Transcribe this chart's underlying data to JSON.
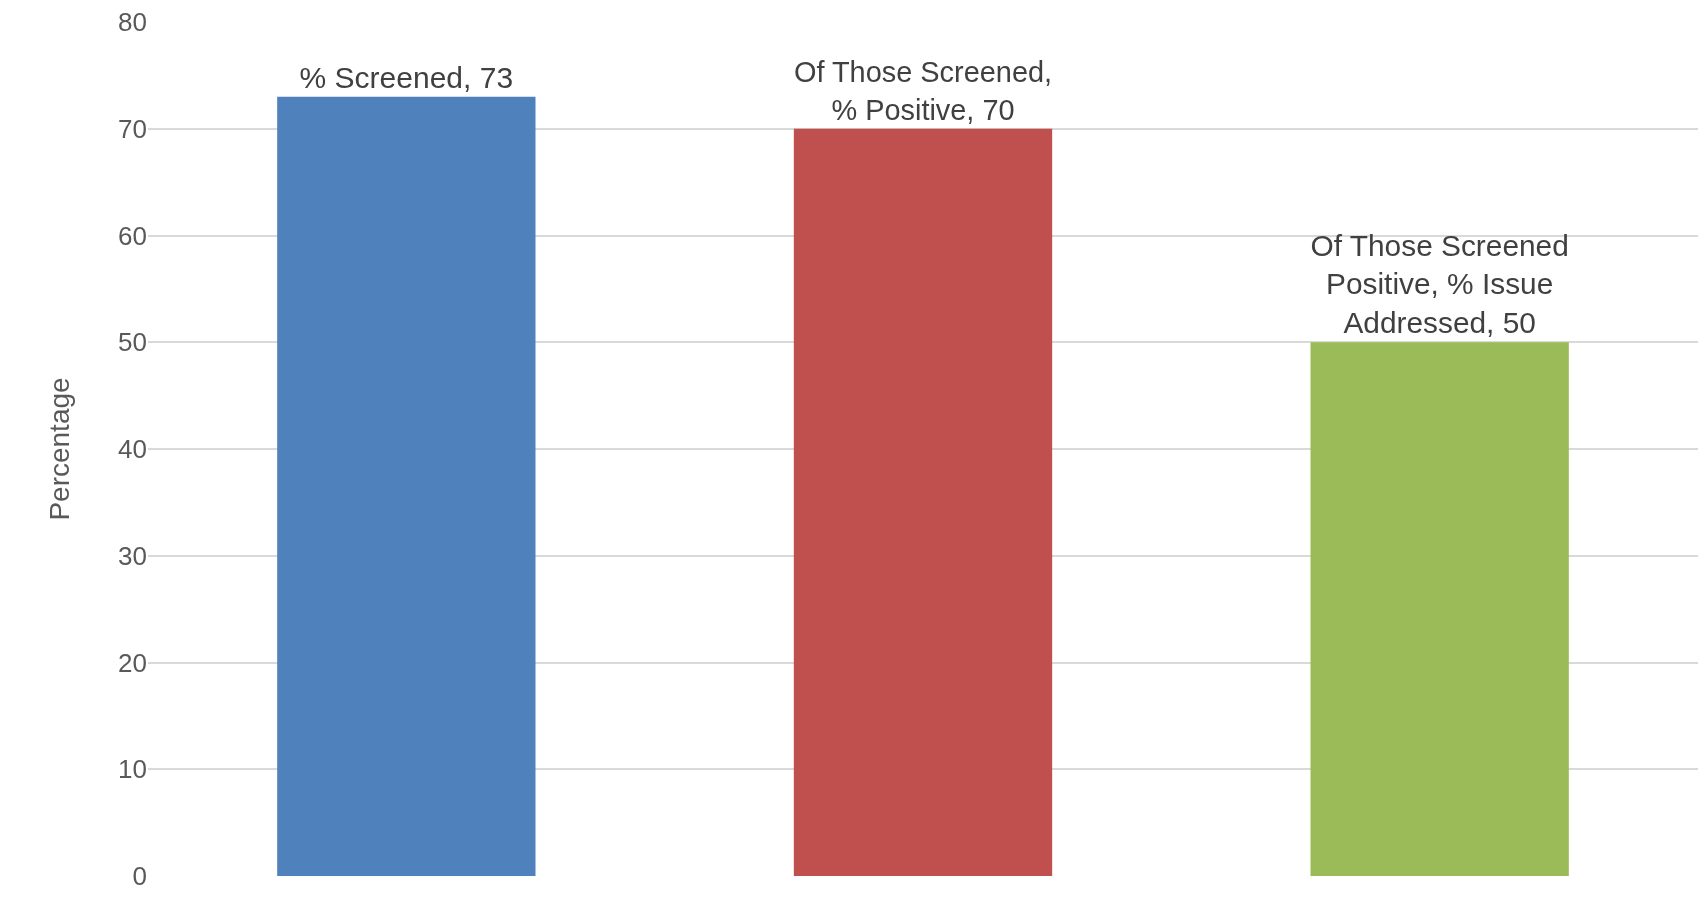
{
  "chart_data": {
    "type": "bar",
    "ylabel": "Percentage",
    "categories": [
      null,
      null,
      null
    ],
    "values": [
      73,
      70,
      50
    ],
    "colors": [
      "#4f81bd",
      "#c0504d",
      "#9bbb59"
    ],
    "value_labels": [
      "% Screened, 73",
      "Of Those Screened, % Positive, 70",
      "Of Those Screened Positive, % Issue Addressed, 50"
    ],
    "ylim": [
      0,
      80
    ],
    "yticks": [
      0,
      10,
      20,
      30,
      40,
      50,
      60,
      70,
      80
    ],
    "grid": "y",
    "tick_labels": "y"
  }
}
